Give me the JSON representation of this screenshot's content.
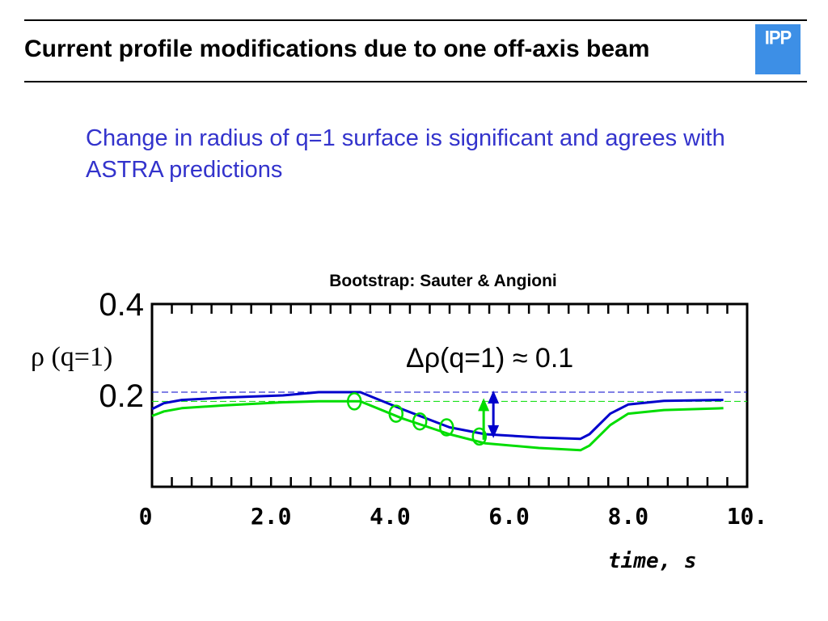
{
  "slide": {
    "title": "Current profile modifications due to one off-axis beam",
    "logo_text": "IPP",
    "subtitle": "Change in radius of q=1 surface is significant and agrees with ASTRA predictions"
  },
  "colors": {
    "subtitle": "#3333cc",
    "series_blue": "#0000cc",
    "series_green": "#00dd00",
    "logo_bg": "#3d8fe6"
  },
  "chart_data": {
    "type": "line",
    "title": "Bootstrap: Sauter & Angioni",
    "xlabel": "time, s",
    "ylabel": "ρ (q=1)",
    "xlim": [
      0,
      10
    ],
    "ylim": [
      0.0,
      0.4
    ],
    "x_ticks": [
      "0",
      "2.0",
      "4.0",
      "6.0",
      "8.0",
      "10."
    ],
    "y_ticks": [
      "0.4",
      "0.2"
    ],
    "grid": false,
    "series": [
      {
        "color": "#0000cc",
        "points": [
          [
            0,
            0.17
          ],
          [
            0.2,
            0.183
          ],
          [
            0.5,
            0.19
          ],
          [
            1.2,
            0.195
          ],
          [
            2.2,
            0.2
          ],
          [
            2.8,
            0.207
          ],
          [
            3.5,
            0.207
          ],
          [
            4.2,
            0.17
          ],
          [
            5.0,
            0.13
          ],
          [
            5.6,
            0.115
          ],
          [
            6.5,
            0.108
          ],
          [
            7.2,
            0.105
          ],
          [
            7.35,
            0.115
          ],
          [
            7.7,
            0.16
          ],
          [
            8.0,
            0.18
          ],
          [
            8.6,
            0.188
          ],
          [
            9.6,
            0.19
          ]
        ]
      },
      {
        "color": "#00dd00",
        "points": [
          [
            0,
            0.155
          ],
          [
            0.2,
            0.165
          ],
          [
            0.5,
            0.172
          ],
          [
            1.2,
            0.178
          ],
          [
            2.2,
            0.185
          ],
          [
            2.8,
            0.187
          ],
          [
            3.5,
            0.187
          ],
          [
            4.2,
            0.15
          ],
          [
            5.0,
            0.115
          ],
          [
            5.6,
            0.095
          ],
          [
            6.5,
            0.085
          ],
          [
            7.2,
            0.08
          ],
          [
            7.35,
            0.09
          ],
          [
            7.7,
            0.135
          ],
          [
            8.0,
            0.16
          ],
          [
            8.6,
            0.168
          ],
          [
            9.6,
            0.172
          ]
        ]
      },
      {
        "type": "markers",
        "color": "#00dd00",
        "points": [
          [
            3.4,
            0.187
          ],
          [
            4.1,
            0.16
          ],
          [
            4.5,
            0.143
          ],
          [
            4.95,
            0.13
          ],
          [
            5.5,
            0.11
          ]
        ]
      }
    ],
    "reference_lines": [
      {
        "y": 0.207,
        "color": "#0000cc",
        "style": "dashed"
      },
      {
        "y": 0.187,
        "color": "#00dd00",
        "style": "dashed"
      }
    ],
    "annotation": {
      "text": "Δρ(q=1) ≈ 0.1",
      "x": 5.6,
      "y_from": 0.11,
      "y_to": 0.207
    }
  }
}
